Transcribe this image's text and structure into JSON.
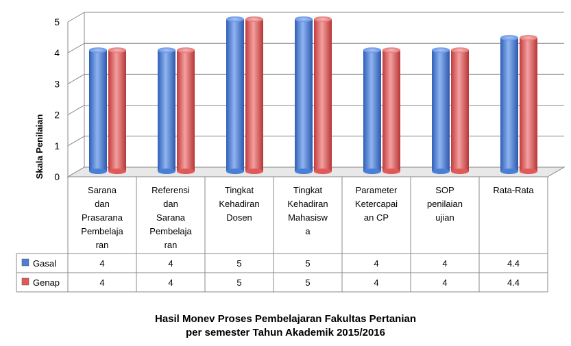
{
  "chart_data": {
    "type": "bar",
    "title_lines": [
      "Hasil Monev Proses Pembelajaran Fakultas Pertanian",
      "per semester Tahun Akademik 2015/2016"
    ],
    "ylabel": "Skala Penilaian",
    "xlabel": "",
    "ylim": [
      0,
      5
    ],
    "yticks": [
      "0",
      "1",
      "2",
      "3",
      "4",
      "5"
    ],
    "categories": [
      [
        "Sarana",
        "dan",
        "Prasarana",
        "Pembelaja",
        "ran"
      ],
      [
        "Referensi",
        "dan",
        "Sarana",
        "Pembelaja",
        "ran"
      ],
      [
        "Tingkat",
        "Kehadiran",
        "Dosen"
      ],
      [
        "Tingkat",
        "Kehadiran",
        "Mahasisw",
        "a"
      ],
      [
        "Parameter",
        "Ketercapai",
        "an CP"
      ],
      [
        "SOP",
        "penilaian",
        "ujian"
      ],
      [
        "Rata-Rata"
      ]
    ],
    "series": [
      {
        "name": "Gasal",
        "color": "#4a7fd6",
        "values": [
          4,
          4,
          5,
          5,
          4,
          4,
          4.4
        ],
        "labels": [
          "4",
          "4",
          "5",
          "5",
          "4",
          "4",
          "4.4"
        ]
      },
      {
        "name": "Genap",
        "color": "#e05a5a",
        "values": [
          4,
          4,
          5,
          5,
          4,
          4,
          4.4
        ],
        "labels": [
          "4",
          "4",
          "5",
          "5",
          "4",
          "4",
          "4.4"
        ]
      }
    ],
    "data_table": true,
    "grid": true
  }
}
